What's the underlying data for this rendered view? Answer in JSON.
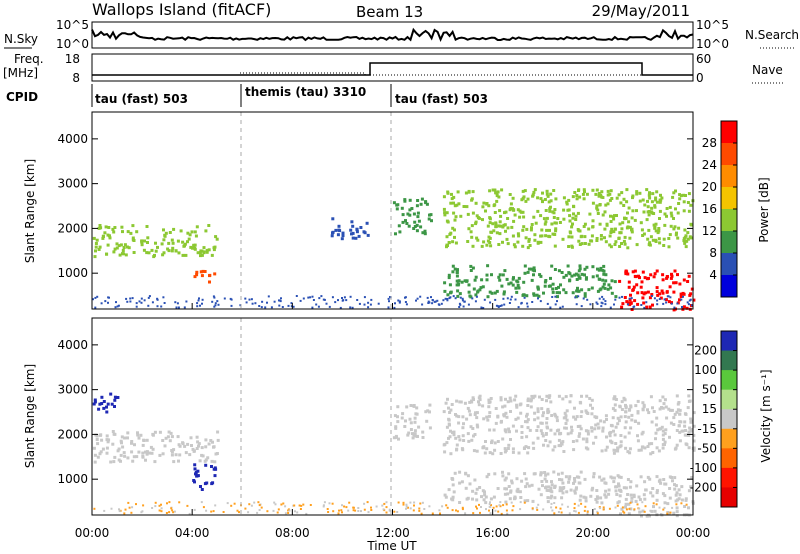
{
  "header": {
    "title": "Wallops Island (fitACF)",
    "beam": "Beam 13",
    "date": "29/May/2011"
  },
  "top_panels": {
    "nsky_label": "N.Sky",
    "nsky_ticks": [
      "10^5",
      "10^0"
    ],
    "nsearch_label": "N.Search",
    "nsearch_ticks": [
      "10^5",
      "10^0"
    ],
    "freq_label": "Freq.",
    "freq_unit": "[MHz]",
    "freq_ticks": [
      "18",
      "8"
    ],
    "nave_label": "Nave",
    "nave_ticks": [
      "60",
      "0"
    ],
    "cpid_label": "CPID",
    "cpid_segments": [
      {
        "label": "tau (fast) 503",
        "start_hour": 0
      },
      {
        "label": "themis (tau) 3310",
        "start_hour": 6
      },
      {
        "label": "tau (fast) 503",
        "start_hour": 12
      }
    ]
  },
  "chart_data": [
    {
      "type": "heatmap",
      "panel": "power",
      "ylabel": "Slant Range [km]",
      "colorbar_label": "Power [dB]",
      "colorbar_ticks": [
        "28",
        "24",
        "20",
        "16",
        "12",
        "8",
        "4"
      ],
      "colorbar_colors": [
        "#ff0000",
        "#ff4a00",
        "#ff8c00",
        "#f5c400",
        "#8cc832",
        "#3c9646",
        "#2a50b4",
        "#0000dc"
      ],
      "yticks": [
        "4000",
        "3000",
        "2000",
        "1000"
      ],
      "ylim": [
        200,
        4600
      ],
      "xlim_hours": [
        0,
        24
      ],
      "echo_regions": [
        {
          "x": [
            0,
            5
          ],
          "y": [
            1400,
            2100
          ],
          "power_db": 14
        },
        {
          "x": [
            4,
            5
          ],
          "y": [
            800,
            1100
          ],
          "power_db": 26
        },
        {
          "x": [
            9.5,
            11
          ],
          "y": [
            1800,
            2300
          ],
          "power_db": 8
        },
        {
          "x": [
            12,
            13.5
          ],
          "y": [
            1900,
            2700
          ],
          "power_db": 12
        },
        {
          "x": [
            14,
            24
          ],
          "y": [
            1600,
            2900
          ],
          "power_db": 16
        },
        {
          "x": [
            14,
            21
          ],
          "y": [
            500,
            1200
          ],
          "power_db": 10
        },
        {
          "x": [
            21,
            24
          ],
          "y": [
            200,
            1100
          ],
          "power_db": 30
        }
      ]
    },
    {
      "type": "heatmap",
      "panel": "velocity",
      "ylabel": "Slant Range [km]",
      "colorbar_label": "Velocity [m s⁻¹]",
      "colorbar_ticks": [
        "200",
        "100",
        "50",
        "15",
        "-15",
        "-50",
        "-100",
        "-200"
      ],
      "colorbar_colors": [
        "#1e28b4",
        "#327850",
        "#5ac83c",
        "#b4e08c",
        "#c8c8c8",
        "#ffa01e",
        "#ff6400",
        "#ff1400",
        "#e60000"
      ],
      "yticks": [
        "4000",
        "3000",
        "2000",
        "1000"
      ],
      "ylim": [
        200,
        4600
      ],
      "xlim_hours": [
        0,
        24
      ],
      "echo_regions": [
        {
          "x": [
            0,
            5
          ],
          "y": [
            1400,
            2100
          ],
          "velocity": 0
        },
        {
          "x": [
            0,
            1
          ],
          "y": [
            2500,
            3000
          ],
          "velocity": 200
        },
        {
          "x": [
            4,
            5
          ],
          "y": [
            800,
            1400
          ],
          "velocity": 150
        },
        {
          "x": [
            12,
            13.5
          ],
          "y": [
            1900,
            2700
          ],
          "velocity": 0
        },
        {
          "x": [
            14,
            24
          ],
          "y": [
            1600,
            2900
          ],
          "velocity": 0
        },
        {
          "x": [
            14,
            21
          ],
          "y": [
            500,
            1200
          ],
          "velocity": 0
        },
        {
          "x": [
            21,
            24
          ],
          "y": [
            200,
            1100
          ],
          "velocity": 0
        }
      ]
    }
  ],
  "x_axis": {
    "ticks": [
      "00:00",
      "04:00",
      "08:00",
      "12:00",
      "16:00",
      "20:00",
      "00:00"
    ],
    "label": "Time UT"
  }
}
